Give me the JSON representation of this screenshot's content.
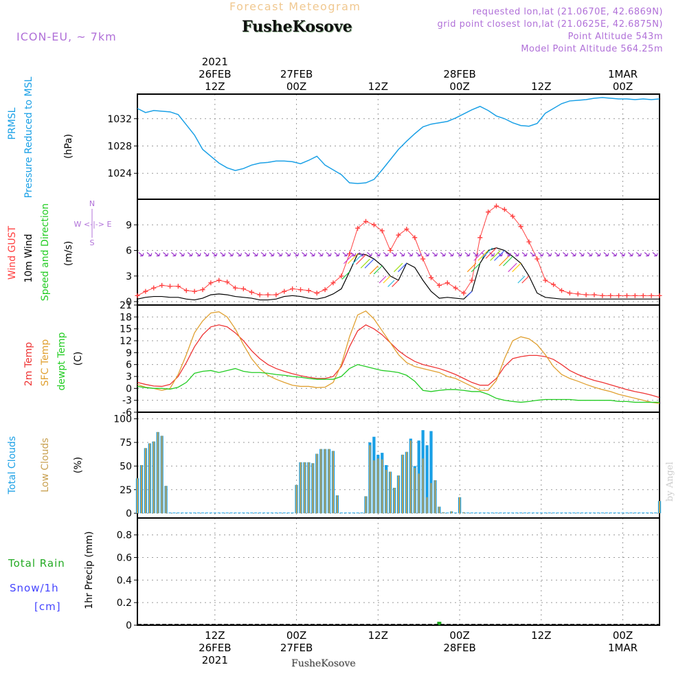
{
  "header": {
    "forecast_title": "Forecast Meteogram",
    "station": "FusheKosove",
    "model": "ICON-EU, ~ 7km",
    "requested": "requested lon,lat (21.0670E, 42.6869N)",
    "grid_point": "grid point closest lon,lat (21.0625E, 42.6875N)",
    "point_alt": "Point Altitude 543m",
    "model_alt": "Model Point Altitude 564.25m",
    "watermark": "by Angel",
    "footer_station": "FusheKosove"
  },
  "colors": {
    "pressure": "#1aa0e6",
    "gust": "#ff4040",
    "wind": "#000000",
    "wind_dir": "#9a33cc",
    "t2m": "#ee3333",
    "tsfc": "#e0a030",
    "dewpt": "#22cc22",
    "total_clouds": "#1aa0e6",
    "low_clouds": "#c8a050",
    "rain": "#22aa22",
    "snow": "#4444ff",
    "meta": "#b070d8"
  },
  "chart_data": [
    {
      "type": "line",
      "panel": "pressure",
      "ylabel_lines": [
        "PRMSL",
        "Pressure Reduced to MSL"
      ],
      "unit": "(hPa)",
      "yticks": [
        1024,
        1028,
        1032
      ],
      "ylim": [
        1020.2,
        1035.6
      ],
      "x_hours": [
        0,
        2,
        4,
        6,
        8,
        10,
        12,
        14,
        16,
        18,
        20,
        22,
        24,
        26,
        28,
        30,
        32,
        34,
        36,
        38,
        40,
        42,
        44,
        46,
        48,
        50,
        52,
        54,
        56,
        58,
        60,
        62,
        64,
        66,
        68,
        70,
        72,
        74,
        76,
        78,
        80,
        82,
        84,
        86,
        88,
        90,
        92,
        94,
        96,
        98,
        100,
        102,
        104,
        106,
        108,
        110,
        112,
        114,
        116,
        118,
        120,
        122,
        124,
        126,
        128
      ],
      "series": [
        {
          "values": [
            1033.5,
            1032.9,
            1033.2,
            1033.1,
            1033.0,
            1032.6,
            1031.1,
            1029.6,
            1027.5,
            1026.5,
            1025.5,
            1024.8,
            1024.4,
            1024.7,
            1025.2,
            1025.5,
            1025.6,
            1025.8,
            1025.8,
            1025.7,
            1025.4,
            1025.9,
            1026.5,
            1025.2,
            1024.5,
            1023.8,
            1022.6,
            1022.5,
            1022.6,
            1023.1,
            1024.5,
            1026.0,
            1027.5,
            1028.7,
            1029.8,
            1030.8,
            1031.2,
            1031.4,
            1031.6,
            1032.1,
            1032.7,
            1033.3,
            1033.8,
            1033.2,
            1032.4,
            1032.0,
            1031.4,
            1031.0,
            1030.9,
            1031.3,
            1032.8,
            1033.5,
            1034.2,
            1034.6,
            1034.7,
            1034.8,
            1035.0,
            1035.1,
            1035.0,
            1034.9,
            1034.9,
            1034.8,
            1034.9,
            1034.8,
            1034.9
          ]
        }
      ]
    },
    {
      "type": "line",
      "panel": "wind",
      "ylabel_lines": [
        "Wind GUST",
        "10m Wind",
        "Speed and Direction"
      ],
      "unit": "(m/s)",
      "compass": [
        "N",
        "W <-|-> E",
        "S"
      ],
      "yticks": [
        0,
        3,
        6,
        9
      ],
      "ylim": [
        -0.4,
        12.0
      ],
      "x_hours": [
        0,
        2,
        4,
        6,
        8,
        10,
        12,
        14,
        16,
        18,
        20,
        22,
        24,
        26,
        28,
        30,
        32,
        34,
        36,
        38,
        40,
        42,
        44,
        46,
        48,
        50,
        52,
        54,
        56,
        58,
        60,
        62,
        64,
        66,
        68,
        70,
        72,
        74,
        76,
        78,
        80,
        82,
        84,
        86,
        88,
        90,
        92,
        94,
        96,
        98,
        100,
        102,
        104,
        106,
        108,
        110,
        112,
        114,
        116,
        118,
        120,
        122,
        124,
        126,
        128
      ],
      "series": [
        {
          "name": "Wind GUST",
          "values": [
            0.7,
            1.2,
            1.6,
            1.9,
            1.8,
            1.8,
            1.3,
            1.2,
            1.4,
            2.2,
            2.5,
            2.3,
            1.6,
            1.5,
            1.1,
            0.8,
            0.8,
            0.8,
            1.2,
            1.5,
            1.4,
            1.3,
            1.0,
            1.4,
            2.2,
            3.0,
            5.6,
            8.6,
            9.4,
            9.0,
            8.3,
            6.0,
            7.8,
            8.5,
            7.5,
            5.0,
            2.8,
            1.9,
            2.2,
            1.6,
            1.0,
            2.5,
            7.5,
            10.5,
            11.2,
            10.8,
            10.0,
            8.8,
            7.0,
            5.0,
            2.5,
            2.0,
            1.3,
            1.0,
            0.9,
            0.8,
            0.8,
            0.7,
            0.7,
            0.7,
            0.7,
            0.7,
            0.7,
            0.7,
            0.7
          ]
        },
        {
          "name": "10m Wind",
          "values": [
            0.3,
            0.5,
            0.6,
            0.6,
            0.5,
            0.5,
            0.3,
            0.2,
            0.4,
            0.8,
            0.9,
            0.8,
            0.6,
            0.5,
            0.4,
            0.2,
            0.2,
            0.3,
            0.6,
            0.7,
            0.6,
            0.4,
            0.3,
            0.5,
            0.9,
            1.5,
            3.5,
            5.6,
            5.5,
            5.0,
            4.2,
            3.0,
            2.5,
            4.5,
            4.0,
            2.5,
            1.2,
            0.4,
            0.5,
            0.4,
            0.3,
            1.2,
            4.5,
            6.0,
            6.3,
            6.0,
            5.3,
            4.5,
            3.0,
            1.0,
            0.5,
            0.4,
            0.3,
            0.3,
            0.3,
            0.3,
            0.3,
            0.3,
            0.3,
            0.3,
            0.3,
            0.3,
            0.3,
            0.3,
            0.3
          ]
        }
      ]
    },
    {
      "type": "line",
      "panel": "temperature",
      "ylabel_lines": [
        "2m Temp",
        "SFC Temp",
        "dewpt Temp"
      ],
      "unit": "(C)",
      "yticks": [
        -6,
        -3,
        0,
        3,
        6,
        9,
        12,
        15,
        18,
        21
      ],
      "ylim": [
        -6,
        21
      ],
      "x_hours": [
        0,
        2,
        4,
        6,
        8,
        10,
        12,
        14,
        16,
        18,
        20,
        22,
        24,
        26,
        28,
        30,
        32,
        34,
        36,
        38,
        40,
        42,
        44,
        46,
        48,
        50,
        52,
        54,
        56,
        58,
        60,
        62,
        64,
        66,
        68,
        70,
        72,
        74,
        76,
        78,
        80,
        82,
        84,
        86,
        88,
        90,
        92,
        94,
        96,
        98,
        100,
        102,
        104,
        106,
        108,
        110,
        112,
        114,
        116,
        118,
        120,
        122,
        124,
        126,
        128
      ],
      "series": [
        {
          "name": "2m Temp",
          "values": [
            1.5,
            1.0,
            0.6,
            0.5,
            1.0,
            3.0,
            6.5,
            10.5,
            13.5,
            15.5,
            16.0,
            15.5,
            14.0,
            12.0,
            9.5,
            7.5,
            6.0,
            5.0,
            4.3,
            3.7,
            3.2,
            2.8,
            2.5,
            2.5,
            3.0,
            5.5,
            10.5,
            14.5,
            16.0,
            15.0,
            13.5,
            11.5,
            9.5,
            8.0,
            6.8,
            6.0,
            5.5,
            5.0,
            4.3,
            3.5,
            2.5,
            1.5,
            0.8,
            0.8,
            2.5,
            5.5,
            7.5,
            8.0,
            8.3,
            8.3,
            8.0,
            7.3,
            6.0,
            4.5,
            3.5,
            2.7,
            2.0,
            1.5,
            0.9,
            0.3,
            -0.3,
            -0.8,
            -1.2,
            -1.7,
            -2.3
          ]
        },
        {
          "name": "SFC Temp",
          "values": [
            1.0,
            0.3,
            0.0,
            -0.5,
            0.0,
            3.5,
            8.5,
            14.0,
            17.0,
            19.0,
            19.3,
            18.0,
            15.0,
            11.0,
            7.5,
            5.0,
            3.3,
            2.3,
            1.5,
            0.8,
            0.5,
            0.5,
            0.2,
            0.3,
            1.5,
            6.0,
            13.0,
            18.5,
            19.5,
            17.5,
            14.5,
            11.5,
            8.5,
            6.5,
            5.5,
            5.0,
            4.5,
            4.0,
            3.0,
            2.5,
            1.5,
            0.5,
            -0.5,
            -0.5,
            2.0,
            7.5,
            12.0,
            13.0,
            12.5,
            11.0,
            8.5,
            5.5,
            3.5,
            2.5,
            1.8,
            1.0,
            0.3,
            -0.3,
            -0.8,
            -1.5,
            -2.0,
            -2.5,
            -3.0,
            -3.5,
            -3.8
          ]
        },
        {
          "name": "dewpt Temp",
          "values": [
            0.5,
            0.2,
            0.0,
            0.0,
            -0.2,
            0.3,
            1.5,
            3.8,
            4.3,
            4.5,
            4.0,
            4.5,
            5.0,
            4.3,
            4.0,
            4.0,
            3.8,
            3.5,
            3.3,
            3.0,
            2.8,
            2.5,
            2.3,
            2.3,
            2.3,
            3.0,
            5.0,
            6.0,
            5.5,
            5.0,
            4.5,
            4.3,
            4.0,
            3.3,
            1.8,
            -0.5,
            -0.8,
            -0.5,
            -0.3,
            -0.3,
            -0.5,
            -0.8,
            -0.8,
            -1.5,
            -2.5,
            -3.0,
            -3.3,
            -3.5,
            -3.3,
            -3.0,
            -2.8,
            -2.8,
            -2.8,
            -2.8,
            -3.0,
            -3.0,
            -3.0,
            -3.0,
            -3.0,
            -3.3,
            -3.3,
            -3.5,
            -3.5,
            -3.5,
            -3.5
          ]
        }
      ]
    },
    {
      "type": "bar",
      "panel": "clouds",
      "ylabel_lines": [
        "Total Clouds",
        "Low Clouds"
      ],
      "unit": "(%)",
      "yticks": [
        0,
        25,
        50,
        75,
        100
      ],
      "ylim": [
        -5,
        107
      ],
      "x_hours": [
        0,
        1,
        2,
        3,
        4,
        5,
        6,
        7,
        8,
        9,
        10,
        11,
        12,
        13,
        14,
        15,
        16,
        17,
        18,
        19,
        20,
        21,
        22,
        23,
        24,
        25,
        26,
        27,
        28,
        29,
        30,
        31,
        32,
        33,
        34,
        35,
        36,
        37,
        38,
        39,
        40,
        41,
        42,
        43,
        44,
        45,
        46,
        47,
        48,
        49,
        50,
        51,
        52,
        53,
        54,
        55,
        56,
        57,
        58,
        59,
        60,
        61,
        62,
        63,
        64,
        65,
        66,
        67,
        68,
        69,
        70,
        71,
        72,
        73,
        74,
        75,
        76,
        77,
        78,
        79,
        80,
        81,
        82,
        83,
        84,
        85,
        86,
        87,
        88,
        89,
        90,
        91,
        92,
        93,
        94,
        95,
        96,
        97,
        98,
        99,
        100,
        101,
        102,
        103,
        104,
        105,
        106,
        107,
        108,
        109,
        110,
        111,
        112,
        113,
        114,
        115,
        116,
        117,
        118,
        119,
        120,
        121,
        122,
        123,
        124,
        125,
        126,
        127,
        128
      ],
      "series": [
        {
          "name": "Total Clouds",
          "values": [
            37,
            51,
            69,
            74,
            76,
            86,
            82,
            29,
            0,
            0,
            0,
            0,
            0,
            0,
            0,
            0,
            0,
            0,
            0,
            0,
            0,
            0,
            0,
            0,
            0,
            0,
            0,
            0,
            0,
            0,
            0,
            0,
            0,
            0,
            0,
            0,
            0,
            0,
            0,
            30,
            54,
            54,
            54,
            53,
            63,
            68,
            68,
            68,
            66,
            19,
            0,
            0,
            0,
            0,
            0,
            0,
            18,
            75,
            81,
            62,
            64,
            51,
            44,
            27,
            40,
            62,
            65,
            79,
            50,
            77,
            88,
            72,
            87,
            35,
            7,
            1,
            0,
            2,
            0,
            17,
            1,
            0,
            0,
            0,
            0,
            0,
            0,
            0,
            0,
            0,
            0,
            0,
            0,
            0,
            0,
            0,
            0,
            0,
            0,
            0,
            0,
            0,
            0,
            0,
            0,
            0,
            0,
            0,
            0,
            0,
            0,
            0,
            0,
            0,
            0,
            0,
            0,
            0,
            0,
            0,
            0,
            0,
            0,
            0,
            0,
            0,
            0,
            0,
            13
          ]
        },
        {
          "name": "Low Clouds",
          "values": [
            37,
            51,
            69,
            74,
            76,
            86,
            82,
            29,
            0,
            0,
            0,
            0,
            0,
            0,
            0,
            0,
            0,
            0,
            0,
            0,
            0,
            0,
            0,
            0,
            0,
            0,
            0,
            0,
            0,
            0,
            0,
            0,
            0,
            0,
            0,
            0,
            0,
            0,
            0,
            30,
            54,
            54,
            54,
            53,
            63,
            68,
            68,
            68,
            66,
            19,
            0,
            0,
            0,
            0,
            0,
            0,
            18,
            72,
            56,
            58,
            57,
            46,
            44,
            27,
            40,
            62,
            65,
            77,
            48,
            42,
            58,
            17,
            32,
            35,
            7,
            1,
            0,
            2,
            0,
            17,
            1,
            0,
            0,
            0,
            0,
            0,
            0,
            0,
            0,
            0,
            0,
            0,
            0,
            0,
            0,
            0,
            0,
            0,
            0,
            0,
            0,
            0,
            0,
            0,
            0,
            0,
            0,
            0,
            0,
            0,
            0,
            0,
            0,
            0,
            0,
            0,
            0,
            0,
            0,
            0,
            0,
            0,
            0,
            0,
            0,
            0,
            0,
            0,
            13
          ]
        }
      ]
    },
    {
      "type": "bar",
      "panel": "precip",
      "ylabel_lines": [
        "1hr Precip (mm)"
      ],
      "legend_lines": [
        "Total Rain",
        "Snow/1h",
        "[cm]"
      ],
      "yticks": [
        0,
        0.2,
        0.4,
        0.6,
        0.8
      ],
      "ylim": [
        0,
        0.95
      ],
      "x_hours": [
        74
      ],
      "series": [
        {
          "name": "Total Rain",
          "values": [
            0.01
          ]
        }
      ]
    }
  ],
  "time_axis": {
    "top_labels": [
      {
        "lines": [
          "2021",
          "26FEB",
          "12Z"
        ]
      },
      {
        "lines": [
          "27FEB",
          "00Z"
        ]
      },
      {
        "lines": [
          "12Z"
        ]
      },
      {
        "lines": [
          "28FEB",
          "00Z"
        ]
      },
      {
        "lines": [
          "12Z"
        ]
      },
      {
        "lines": [
          "1MAR",
          "00Z"
        ]
      }
    ],
    "bottom_labels": [
      {
        "lines": [
          "12Z",
          "26FEB",
          "2021"
        ]
      },
      {
        "lines": [
          "00Z",
          "27FEB"
        ]
      },
      {
        "lines": [
          "12Z"
        ]
      },
      {
        "lines": [
          "00Z",
          "28FEB"
        ]
      },
      {
        "lines": [
          "12Z"
        ]
      },
      {
        "lines": [
          "00Z",
          "1MAR"
        ]
      }
    ],
    "gridline_hours": [
      19,
      39,
      59,
      79,
      99,
      119
    ]
  }
}
